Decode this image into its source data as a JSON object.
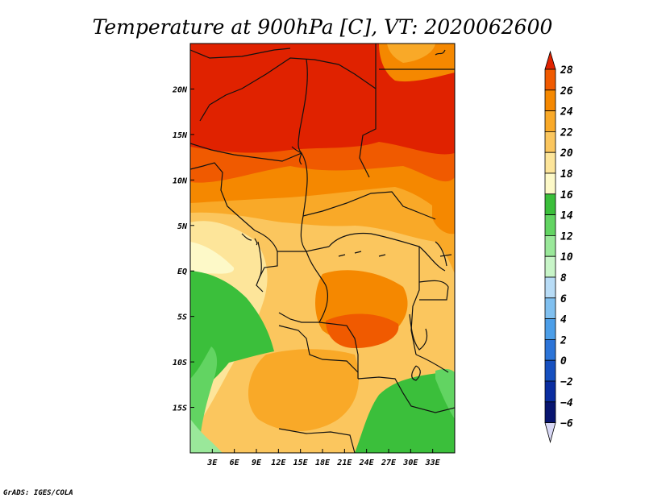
{
  "title": "Temperature at 900hPa [C], VT: 2020062600",
  "credit": "GrADS: IGES/COLA",
  "map": {
    "lon_range": [
      0,
      36
    ],
    "lat_range": [
      -20,
      25
    ],
    "lon_ticks": [
      {
        "value": 3,
        "label": "3E"
      },
      {
        "value": 6,
        "label": "6E"
      },
      {
        "value": 9,
        "label": "9E"
      },
      {
        "value": 12,
        "label": "12E"
      },
      {
        "value": 15,
        "label": "15E"
      },
      {
        "value": 18,
        "label": "18E"
      },
      {
        "value": 21,
        "label": "21E"
      },
      {
        "value": 24,
        "label": "24E"
      },
      {
        "value": 27,
        "label": "27E"
      },
      {
        "value": 30,
        "label": "30E"
      },
      {
        "value": 33,
        "label": "33E"
      }
    ],
    "lat_ticks": [
      {
        "value": 20,
        "label": "20N"
      },
      {
        "value": 15,
        "label": "15N"
      },
      {
        "value": 10,
        "label": "10N"
      },
      {
        "value": 5,
        "label": "5N"
      },
      {
        "value": 0,
        "label": "EQ"
      },
      {
        "value": -5,
        "label": "5S"
      },
      {
        "value": -10,
        "label": "10S"
      },
      {
        "value": -15,
        "label": "15S"
      }
    ]
  },
  "colorbar": {
    "levels": [
      "28",
      "26",
      "24",
      "22",
      "20",
      "18",
      "16",
      "14",
      "12",
      "10",
      "8",
      "6",
      "4",
      "2",
      "0",
      "−2",
      "−4",
      "−6"
    ],
    "colors": [
      "#e02200",
      "#f05a00",
      "#f58800",
      "#f9a928",
      "#fbc65e",
      "#fde59a",
      "#fdf9c8",
      "#3bbf3b",
      "#62d462",
      "#9ae89a",
      "#c8f5c8",
      "#b8dcf6",
      "#80c0f0",
      "#4c9ee8",
      "#2c74d8",
      "#1650c0",
      "#0a2da0",
      "#081570",
      "#d8d8f5"
    ],
    "top_color": "#e02200",
    "bottom_color": "#d8d8f5"
  }
}
